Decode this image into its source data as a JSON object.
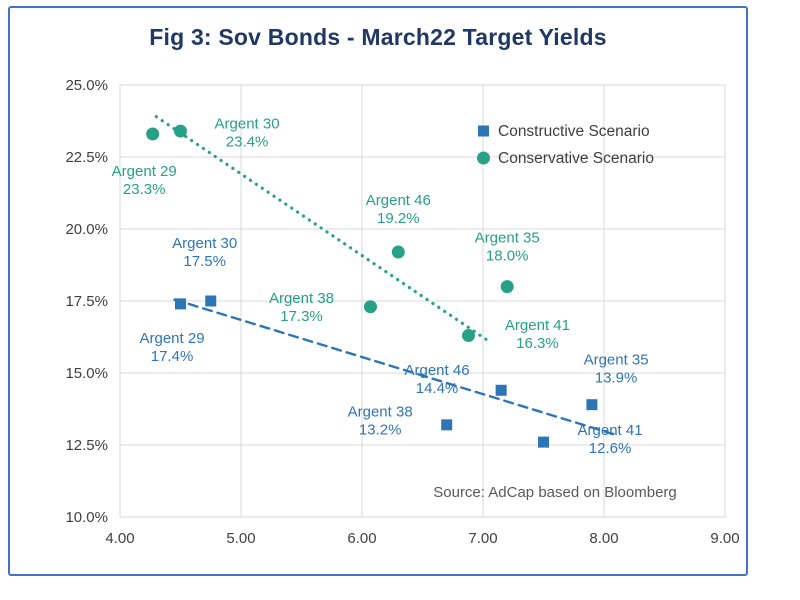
{
  "chart_data": {
    "type": "scatter",
    "title": "Fig 3: Sov Bonds - March22 Target Yields",
    "source": "Source: AdCap based on Bloomberg",
    "x_axis": {
      "min": 4,
      "max": 9,
      "tick_values": [
        4,
        5,
        6,
        7,
        8,
        9
      ],
      "tick_labels": [
        "4.00",
        "5.00",
        "6.00",
        "7.00",
        "8.00",
        "9.00"
      ]
    },
    "y_axis": {
      "min": 10,
      "max": 25,
      "tick_values": [
        10,
        12.5,
        15,
        17.5,
        20,
        22.5,
        25
      ],
      "tick_labels": [
        "10.0%",
        "12.5%",
        "15.0%",
        "17.5%",
        "20.0%",
        "22.5%",
        "25.0%"
      ]
    },
    "legend": {
      "position": "top-right",
      "entries": [
        "Constructive Scenario",
        "Conservative Scenario"
      ]
    },
    "series": [
      {
        "name": "Constructive Scenario",
        "marker": "square",
        "color": "#2e75b6",
        "trendline": {
          "style": "dashed",
          "from": {
            "x": 4.45,
            "y": 17.55
          },
          "to": {
            "x": 8.1,
            "y": 12.85
          }
        },
        "points": [
          {
            "label": "Argent 29",
            "value": "17.4%",
            "x": 4.5,
            "y": 17.4,
            "label_x": 4.43,
            "label_y": 15.9
          },
          {
            "label": "Argent 30",
            "value": "17.5%",
            "x": 4.75,
            "y": 17.5,
            "label_x": 4.7,
            "label_y": 19.2
          },
          {
            "label": "Argent 38",
            "value": "13.2%",
            "x": 6.7,
            "y": 13.2,
            "label_x": 6.15,
            "label_y": 13.35
          },
          {
            "label": "Argent 46",
            "value": "14.4%",
            "x": 7.15,
            "y": 14.4,
            "label_x": 6.62,
            "label_y": 14.8
          },
          {
            "label": "Argent 41",
            "value": "12.6%",
            "x": 7.5,
            "y": 12.6,
            "label_x": 8.05,
            "label_y": 12.7
          },
          {
            "label": "Argent 35",
            "value": "13.9%",
            "x": 7.9,
            "y": 13.9,
            "label_x": 8.1,
            "label_y": 15.15
          }
        ]
      },
      {
        "name": "Conservative Scenario",
        "marker": "circle",
        "color": "#26a186",
        "trendline": {
          "style": "dotted",
          "from": {
            "x": 4.3,
            "y": 23.9
          },
          "to": {
            "x": 7.05,
            "y": 16.1
          }
        },
        "points": [
          {
            "label": "Argent 29",
            "value": "23.3%",
            "x": 4.27,
            "y": 23.3,
            "label_x": 4.2,
            "label_y": 21.7
          },
          {
            "label": "Argent 30",
            "value": "23.4%",
            "x": 4.5,
            "y": 23.4,
            "label_x": 5.05,
            "label_y": 23.35
          },
          {
            "label": "Argent 38",
            "value": "17.3%",
            "x": 6.07,
            "y": 17.3,
            "label_x": 5.5,
            "label_y": 17.3
          },
          {
            "label": "Argent 46",
            "value": "19.2%",
            "x": 6.3,
            "y": 19.2,
            "label_x": 6.3,
            "label_y": 20.7
          },
          {
            "label": "Argent 41",
            "value": "16.3%",
            "x": 6.88,
            "y": 16.3,
            "label_x": 7.45,
            "label_y": 16.35
          },
          {
            "label": "Argent 35",
            "value": "18.0%",
            "x": 7.2,
            "y": 18.0,
            "label_x": 7.2,
            "label_y": 19.4
          }
        ]
      }
    ],
    "colors": {
      "title": "#1f3864",
      "axis_text": "#404040",
      "grid": "#d9d9d9",
      "frame_border": "#4472c4",
      "source_text": "#595959",
      "legend_text": "#3f3f3f"
    }
  }
}
